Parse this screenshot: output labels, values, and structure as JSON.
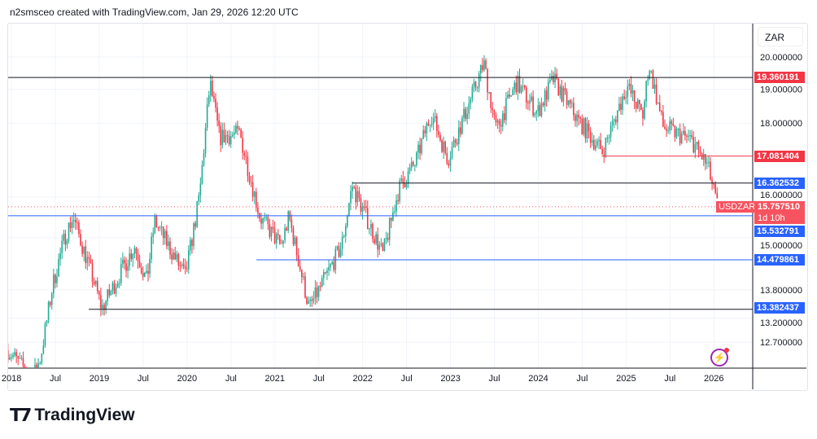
{
  "header": {
    "caption": "n2smsceo created with TradingView.com, Jan 29, 2026 12:20 UTC"
  },
  "footer": {
    "brand": "TradingView"
  },
  "currency_button": "ZAR",
  "symbol": "USDZAR",
  "countdown": "1d 10h",
  "colors": {
    "up": "#22ab94",
    "down": "#f23645",
    "blue": "#2962ff",
    "red": "#f23645",
    "dark": "#131722"
  },
  "chart_data": {
    "type": "candlestick",
    "symbol": "USDZAR",
    "interval": "weekly",
    "scale": "log",
    "ylim": [
      12.2,
      21.0
    ],
    "y_ticks": [
      "20.000000",
      "19.000000",
      "18.000000",
      "16.000000",
      "15.000000",
      "13.800000",
      "13.200000",
      "12.700000"
    ],
    "y_tick_values": [
      20,
      19,
      18,
      16,
      15,
      13.8,
      13.2,
      12.7
    ],
    "x_ticks": [
      "2018",
      "Jul",
      "2019",
      "Jul",
      "2020",
      "Jul",
      "2021",
      "Jul",
      "2022",
      "Jul",
      "2023",
      "Jul",
      "2024",
      "Jul",
      "2025",
      "Jul",
      "2026"
    ],
    "x_tick_values": [
      2018,
      2018.5,
      2019,
      2019.5,
      2020,
      2020.5,
      2021,
      2021.5,
      2022,
      2022.5,
      2023,
      2023.5,
      2024,
      2024.5,
      2025,
      2025.5,
      2026
    ],
    "path": [
      [
        2017.96,
        12.54
      ],
      [
        2018.24,
        11.98
      ],
      [
        2018.33,
        12.38
      ],
      [
        2018.47,
        13.91
      ],
      [
        2018.61,
        15.04
      ],
      [
        2018.7,
        15.5
      ],
      [
        2018.89,
        14.3
      ],
      [
        2019.03,
        13.4
      ],
      [
        2019.4,
        14.8
      ],
      [
        2019.54,
        14.0
      ],
      [
        2019.63,
        15.4
      ],
      [
        2019.98,
        14.1
      ],
      [
        2020.14,
        16.0
      ],
      [
        2020.26,
        19.2
      ],
      [
        2020.37,
        17.6
      ],
      [
        2020.6,
        17.7
      ],
      [
        2020.83,
        15.5
      ],
      [
        2021.07,
        14.8
      ],
      [
        2021.16,
        15.5
      ],
      [
        2021.39,
        13.4
      ],
      [
        2021.76,
        14.8
      ],
      [
        2021.88,
        16.3
      ],
      [
        2022.04,
        15.5
      ],
      [
        2022.23,
        14.6
      ],
      [
        2022.41,
        16.2
      ],
      [
        2022.6,
        16.9
      ],
      [
        2022.78,
        18.3
      ],
      [
        2022.97,
        17.0
      ],
      [
        2023.2,
        18.5
      ],
      [
        2023.38,
        19.8
      ],
      [
        2023.52,
        17.8
      ],
      [
        2023.75,
        19.2
      ],
      [
        2023.99,
        18.3
      ],
      [
        2024.17,
        19.3
      ],
      [
        2024.45,
        18.1
      ],
      [
        2024.73,
        17.2
      ],
      [
        2025.01,
        19.1
      ],
      [
        2025.19,
        18.2
      ],
      [
        2025.26,
        19.8
      ],
      [
        2025.42,
        17.9
      ],
      [
        2025.75,
        17.5
      ],
      [
        2025.93,
        16.8
      ],
      [
        2026.04,
        15.76
      ]
    ],
    "last_price": "15.757510",
    "levels": [
      {
        "value": 19.360191,
        "label": "19.360191",
        "from": 2017.96,
        "line": "dark",
        "tag": "red"
      },
      {
        "value": 17.081404,
        "label": "17.081404",
        "from": 2024.72,
        "line": "red",
        "tag": "red"
      },
      {
        "value": 16.362532,
        "label": "16.362532",
        "from": 2021.88,
        "line": "dark",
        "tag": "blue"
      },
      {
        "value": 15.532791,
        "label": "15.532791",
        "from": 2017.96,
        "line": "blue",
        "tag": "blue"
      },
      {
        "value": 14.479861,
        "label": "14.479861",
        "from": 2020.79,
        "line": "blue",
        "tag": "blue"
      },
      {
        "value": 13.382437,
        "label": "13.382437",
        "from": 2018.88,
        "line": "dark",
        "tag": "blue"
      }
    ]
  }
}
